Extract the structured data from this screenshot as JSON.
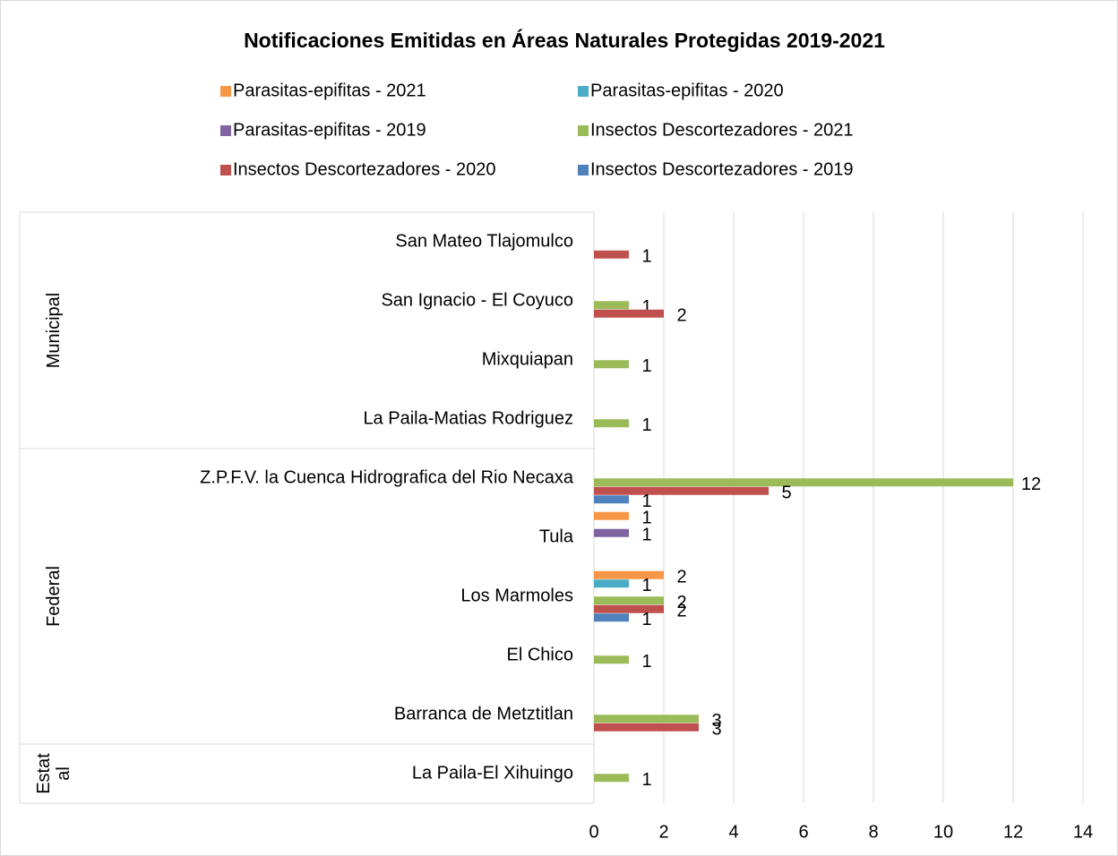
{
  "chart_data": {
    "type": "bar",
    "horizontal": true,
    "title": "Notificaciones Emitidas en Áreas Naturales Protegidas 2019-2021",
    "groups": [
      {
        "label": "Municipal",
        "categories": [
          "San Mateo Tlajomulco",
          "San Ignacio - El Coyuco",
          "Mixquiapan",
          "La Paila-Matias Rodriguez"
        ]
      },
      {
        "label": "Federal",
        "categories": [
          "Z.P.F.V. la Cuenca Hidrografica del Rio Necaxa",
          "Tula",
          "Los Marmoles",
          "El Chico",
          "Barranca de Metztitlan"
        ]
      },
      {
        "label": "Estatal",
        "categories": [
          "La Paila-El Xihuingo"
        ]
      }
    ],
    "series": [
      {
        "name": "Parasitas-epifitas - 2021",
        "color": "#f79646",
        "values": [
          null,
          null,
          null,
          null,
          null,
          1,
          2,
          null,
          null,
          null
        ]
      },
      {
        "name": "Parasitas-epifitas - 2020",
        "color": "#4bacc6",
        "values": [
          null,
          null,
          null,
          null,
          null,
          null,
          1,
          null,
          null,
          null
        ]
      },
      {
        "name": "Parasitas-epifitas - 2019",
        "color": "#8064a2",
        "values": [
          null,
          null,
          null,
          null,
          null,
          1,
          null,
          null,
          null,
          null
        ]
      },
      {
        "name": "Insectos Descortezadores - 2021",
        "color": "#9bbb59",
        "values": [
          null,
          1,
          1,
          1,
          12,
          null,
          2,
          1,
          3,
          1
        ]
      },
      {
        "name": "Insectos Descortezadores - 2020",
        "color": "#c0504d",
        "values": [
          1,
          2,
          null,
          null,
          5,
          null,
          2,
          null,
          3,
          null
        ]
      },
      {
        "name": "Insectos Descortezadores - 2019",
        "color": "#4f81bd",
        "values": [
          null,
          null,
          null,
          null,
          1,
          null,
          1,
          null,
          null,
          null
        ]
      }
    ],
    "xlim": [
      0,
      14
    ],
    "xticks": [
      0,
      2,
      4,
      6,
      8,
      10,
      12,
      14
    ],
    "grid": true
  }
}
